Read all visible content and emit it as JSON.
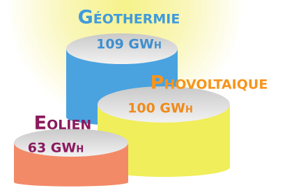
{
  "chart_data": {
    "type": "cylinder",
    "categories": [
      "Géothermie",
      "Phovoltaique",
      "Eolien"
    ],
    "values": [
      109,
      100,
      63
    ],
    "value_labels": [
      "109 GWh",
      "100 GWh",
      "63 GWh"
    ],
    "colors": [
      "#4aa3df",
      "#f0ee5a",
      "#f28a68"
    ],
    "label_colors": [
      "#3f9bdc",
      "#f7941d",
      "#8b1a5e"
    ],
    "value_label_colors": [
      "#3d8fcf",
      "#f08a1a",
      "#8b1a5e"
    ]
  }
}
